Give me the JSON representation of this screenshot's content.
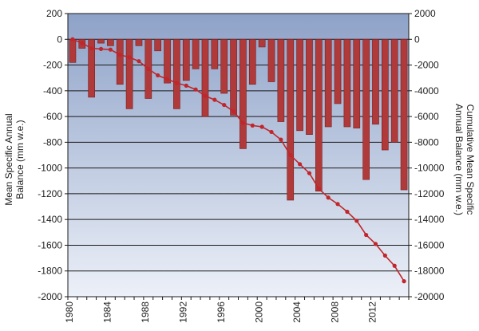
{
  "chart_data": {
    "type": "bar",
    "title": "",
    "x": [
      1980,
      1981,
      1982,
      1983,
      1984,
      1985,
      1986,
      1987,
      1988,
      1989,
      1990,
      1991,
      1992,
      1993,
      1994,
      1995,
      1996,
      1997,
      1998,
      1999,
      2000,
      2001,
      2002,
      2003,
      2004,
      2005,
      2006,
      2007,
      2008,
      2009,
      2010,
      2011,
      2012,
      2013,
      2014,
      2015
    ],
    "xticks": [
      "1980",
      "1984",
      "1988",
      "1992",
      "1996",
      "2000",
      "2004",
      "2008",
      "2012"
    ],
    "xtick_values": [
      1980,
      1984,
      1988,
      1992,
      1996,
      2000,
      2004,
      2008,
      2012
    ],
    "series": [
      {
        "name": "",
        "kind": "bar",
        "axis": "left",
        "color": "#b03a3a",
        "values": [
          -180,
          -70,
          -450,
          -30,
          -50,
          -350,
          -540,
          -50,
          -460,
          -90,
          -340,
          -540,
          -320,
          -230,
          -600,
          -230,
          -420,
          -590,
          -850,
          -350,
          -60,
          -330,
          -640,
          -1250,
          -710,
          -740,
          -1180,
          -680,
          -500,
          -680,
          -690,
          -1090,
          -660,
          -860,
          -800,
          -1170
        ]
      },
      {
        "name": "",
        "kind": "line",
        "axis": "right",
        "color": "#c0262b",
        "values": [
          0,
          -300,
          -700,
          -750,
          -800,
          -1200,
          -1400,
          -1700,
          -2300,
          -2800,
          -3100,
          -3400,
          -3600,
          -3900,
          -4400,
          -4700,
          -5100,
          -5600,
          -6500,
          -6700,
          -6800,
          -7200,
          -7800,
          -9000,
          -9700,
          -10400,
          -11600,
          -12300,
          -12800,
          -13400,
          -14100,
          -15200,
          -15900,
          -16800,
          -17600,
          -18800
        ]
      }
    ],
    "ylabel": "Mean Specific Annual Balance (mm w.e.)",
    "ylabel_lines": [
      "Mean Specific Annual",
      "Balance (mm w.e.)"
    ],
    "ylim": [
      -2000,
      200
    ],
    "yticks": [
      200,
      0,
      -200,
      -400,
      -600,
      -800,
      -1000,
      -1200,
      -1400,
      -1600,
      -1800,
      -2000
    ],
    "y2label": "Cumulative Mean Specific Annual Balance (mm w.e.)",
    "y2label_lines": [
      "Cumulative Mean Specific",
      "Annual Balance (mm w.e.)"
    ],
    "y2lim": [
      -20000,
      2000
    ],
    "y2ticks": [
      2000,
      0,
      -2000,
      -4000,
      -6000,
      -8000,
      -10000,
      -12000,
      -14000,
      -16000,
      -18000,
      -20000
    ],
    "grid": true,
    "legend": "none",
    "colors": {
      "bg_top": "#8ea2c8",
      "bg_bottom": "#ecf0f8",
      "bar": "#b03a3a",
      "bar_edge": "#7a1e1e",
      "line": "#c0262b"
    }
  }
}
